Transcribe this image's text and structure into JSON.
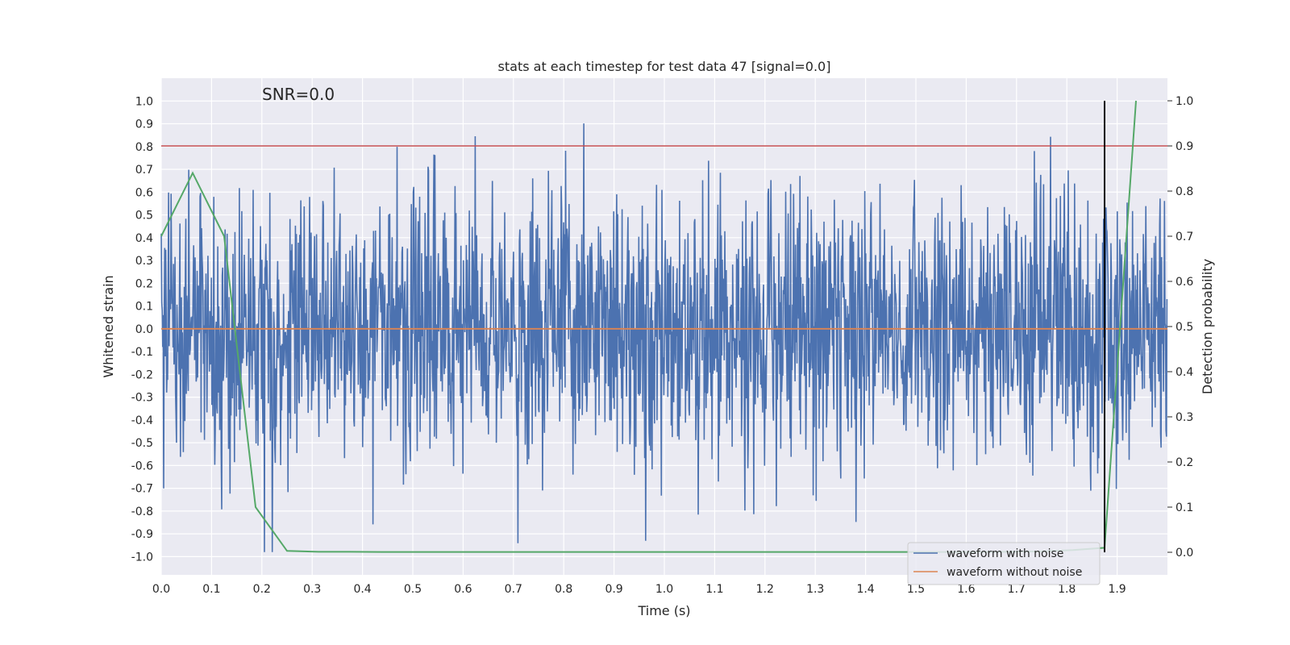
{
  "chart_data": {
    "type": "line",
    "title": "stats at each timestep for test data 47 [signal=0.0]",
    "xlabel": "Time (s)",
    "ylabel_left": "Whitened strain",
    "ylabel_right": "Detection probability",
    "xlim": [
      0.0,
      2.0
    ],
    "ylim_left": [
      -1.08,
      1.1
    ],
    "ylim_right": [
      -0.05,
      1.05
    ],
    "x_ticks": [
      "0.0",
      "0.1",
      "0.2",
      "0.3",
      "0.4",
      "0.5",
      "0.6",
      "0.7",
      "0.8",
      "0.9",
      "1.0",
      "1.1",
      "1.2",
      "1.3",
      "1.4",
      "1.5",
      "1.6",
      "1.7",
      "1.8",
      "1.9"
    ],
    "y_ticks_left": [
      "1.0",
      "0.9",
      "0.8",
      "0.7",
      "0.6",
      "0.5",
      "0.4",
      "0.3",
      "0.2",
      "0.1",
      "0.0",
      "-0.1",
      "-0.2",
      "-0.3",
      "-0.4",
      "-0.5",
      "-0.6",
      "-0.7",
      "-0.8",
      "-0.9",
      "-1.0"
    ],
    "y_ticks_right": [
      "1.0",
      "0.9",
      "0.8",
      "0.7",
      "0.6",
      "0.5",
      "0.4",
      "0.3",
      "0.2",
      "0.1",
      "0.0"
    ],
    "annotation": "SNR=0.0",
    "grid": true,
    "legend_position": "bottom-right",
    "series": [
      {
        "name": "waveform with noise",
        "color": "#4c72b0",
        "axis": "left",
        "style": "noise",
        "amplitude": 1.0,
        "samples": 2048
      },
      {
        "name": "waveform without noise",
        "color": "#dd8452",
        "axis": "left",
        "constant": 0.0
      },
      {
        "name": "detection probability",
        "color": "#55a868",
        "axis": "right",
        "x": [
          0.0,
          0.0625,
          0.125,
          0.1875,
          0.25,
          0.3125,
          0.375,
          0.4375,
          0.5,
          0.5625,
          0.625,
          0.6875,
          0.75,
          0.8125,
          0.875,
          0.9375,
          1.0,
          1.0625,
          1.125,
          1.1875,
          1.25,
          1.3125,
          1.375,
          1.4375,
          1.5,
          1.5625,
          1.625,
          1.6875,
          1.75,
          1.8125,
          1.875,
          1.9375
        ],
        "y": [
          0.7,
          0.84,
          0.7,
          0.1,
          0.003,
          0.001,
          0.001,
          0.0008,
          0.0008,
          0.0007,
          0.0007,
          0.0007,
          0.0007,
          0.0007,
          0.0007,
          0.0007,
          0.0007,
          0.0007,
          0.0007,
          0.0007,
          0.0007,
          0.0007,
          0.0007,
          0.0007,
          0.0007,
          0.0007,
          0.0008,
          0.001,
          0.002,
          0.005,
          0.01,
          1.0
        ]
      }
    ],
    "threshold": {
      "value": 0.9,
      "axis": "right",
      "color": "#c44e52"
    },
    "marker_line": {
      "x": 1.875,
      "y_from": 0.0,
      "y_to": 1.0,
      "axis": "right",
      "color": "#000000"
    }
  }
}
